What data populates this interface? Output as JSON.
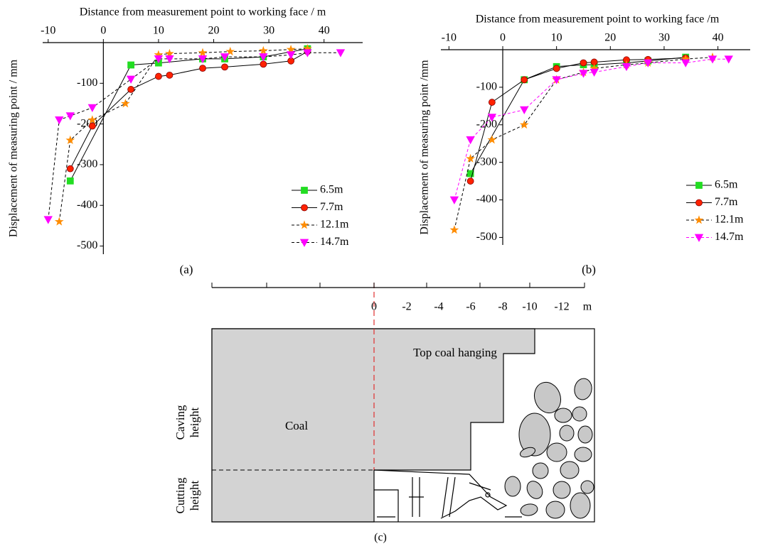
{
  "chart_data": [
    {
      "type": "line",
      "label": "(a)",
      "x_label": "Distance from measurement point to working face / m",
      "y_label": "Displacement of measuring point / mm",
      "xlim": [
        -11,
        47
      ],
      "ylim": [
        -520,
        0
      ],
      "xticks": [
        -10,
        0,
        10,
        20,
        30,
        40
      ],
      "yticks": [
        -100,
        -200,
        -300,
        -400,
        -500
      ],
      "legend": "lower right",
      "series": [
        {
          "name": "6.5m",
          "color": "#22dd22",
          "line_color": "#000000",
          "linestyle": "solid",
          "marker": "square",
          "x": [
            -6,
            5,
            10,
            18,
            22,
            29,
            37
          ],
          "values": [
            -340,
            -55,
            -50,
            -40,
            -40,
            -35,
            -15
          ]
        },
        {
          "name": "7.7m",
          "color": "#ff2200",
          "line_color": "#000000",
          "linestyle": "solid",
          "marker": "circle",
          "x": [
            -6,
            -2,
            5,
            10,
            12,
            18,
            22,
            29,
            34,
            37
          ],
          "values": [
            -310,
            -205,
            -115,
            -83,
            -80,
            -63,
            -60,
            -53,
            -45,
            -22
          ]
        },
        {
          "name": "12.1m",
          "color": "#ff8c00",
          "line_color": "#000000",
          "linestyle": "dashed",
          "marker": "star",
          "x": [
            -8,
            -6,
            -2,
            4,
            10,
            12,
            18,
            23,
            29,
            34,
            37
          ],
          "values": [
            -440,
            -240,
            -190,
            -150,
            -30,
            -27,
            -25,
            -22,
            -20,
            -17,
            -15
          ]
        },
        {
          "name": "14.7m",
          "color": "#ff00ff",
          "line_color": "#000000",
          "linestyle": "dashed",
          "marker": "triangle-down",
          "x": [
            -10,
            -8,
            -6,
            -2,
            5,
            10,
            12,
            18,
            22,
            29,
            34,
            37,
            43
          ],
          "values": [
            -435,
            -190,
            -180,
            -160,
            -90,
            -40,
            -40,
            -40,
            -35,
            -35,
            -30,
            -25,
            -25
          ]
        }
      ]
    },
    {
      "type": "line",
      "label": "(b)",
      "x_label": "Distance from measurement point to working face /m",
      "y_label": "Displacement of measuring point /mm",
      "xlim": [
        -11.5,
        46
      ],
      "ylim": [
        -520,
        0
      ],
      "xticks": [
        -10,
        0,
        10,
        20,
        30,
        40
      ],
      "yticks": [
        -100,
        -200,
        -300,
        -400,
        -500
      ],
      "legend": "lower right",
      "series": [
        {
          "name": "6.5m",
          "color": "#22dd22",
          "line_color": "#000000",
          "linestyle": "solid",
          "marker": "square",
          "x": [
            -6,
            4,
            10,
            15,
            17,
            23,
            27,
            34
          ],
          "values": [
            -330,
            -80,
            -45,
            -40,
            -40,
            -35,
            -30,
            -20
          ]
        },
        {
          "name": "7.7m",
          "color": "#ff2200",
          "line_color": "#000000",
          "linestyle": "solid",
          "marker": "circle",
          "x": [
            -6,
            -2,
            4,
            10,
            15,
            17,
            23,
            27,
            34
          ],
          "values": [
            -350,
            -140,
            -80,
            -50,
            -35,
            -33,
            -27,
            -26,
            -22
          ]
        },
        {
          "name": "12.1m",
          "color": "#ff8c00",
          "line_color": "#000000",
          "linestyle": "dashed",
          "marker": "star",
          "x": [
            -9,
            -6,
            -2,
            4,
            10,
            15,
            17,
            23,
            27,
            34,
            39
          ],
          "values": [
            -480,
            -290,
            -240,
            -200,
            -80,
            -60,
            -50,
            -40,
            -35,
            -25,
            -20
          ]
        },
        {
          "name": "14.7m",
          "color": "#ff00ff",
          "line_color": "#ff00ff",
          "linestyle": "dashed",
          "marker": "triangle-down",
          "x": [
            -9,
            -6,
            -2,
            4,
            10,
            15,
            17,
            23,
            27,
            34,
            39,
            42
          ],
          "values": [
            -400,
            -240,
            -180,
            -160,
            -80,
            -63,
            -60,
            -45,
            -35,
            -35,
            -25,
            -25
          ]
        }
      ]
    }
  ],
  "diagram": {
    "label": "(c)",
    "scale": [
      "0",
      "-2",
      "-4",
      "-6",
      "-8",
      "-10",
      "-12"
    ],
    "unit": "m",
    "top_coal": "Top coal hanging",
    "coal": "Coal",
    "caving": [
      "Caving",
      "height"
    ],
    "cutting": [
      "Cutting",
      "height"
    ]
  }
}
